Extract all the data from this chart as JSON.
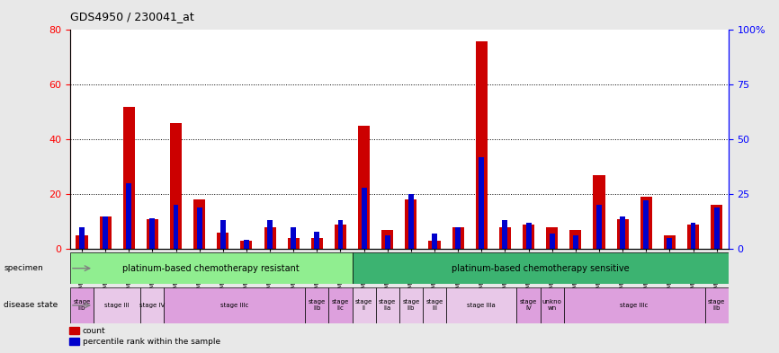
{
  "title": "GDS4950 / 230041_at",
  "samples": [
    "GSM1243893",
    "GSM1243879",
    "GSM1243904",
    "GSM1243878",
    "GSM1243882",
    "GSM1243880",
    "GSM1243891",
    "GSM1243892",
    "GSM1243894",
    "GSM1243897",
    "GSM1243896",
    "GSM1243885",
    "GSM1243895",
    "GSM1243898",
    "GSM1243886",
    "GSM1243881",
    "GSM1243887",
    "GSM1243889",
    "GSM1243890",
    "GSM1243900",
    "GSM1243877",
    "GSM1243884",
    "GSM1243883",
    "GSM1243888",
    "GSM1243901",
    "GSM1243902",
    "GSM1243903",
    "GSM1243899"
  ],
  "count_values": [
    5,
    12,
    52,
    11,
    46,
    18,
    6,
    3,
    8,
    4,
    4,
    9,
    45,
    7,
    18,
    3,
    8,
    76,
    8,
    9,
    8,
    7,
    27,
    11,
    19,
    5,
    9,
    16
  ],
  "percentile_values": [
    10,
    15,
    30,
    14,
    20,
    19,
    13,
    4,
    13,
    10,
    8,
    13,
    28,
    6,
    25,
    7,
    10,
    42,
    13,
    12,
    7,
    6,
    20,
    15,
    22,
    5,
    12,
    19
  ],
  "specimen_groups": [
    {
      "label": "platinum-based chemotherapy resistant",
      "start": 0,
      "end": 12,
      "color": "#90EE90"
    },
    {
      "label": "platinum-based chemotherapy sensitive",
      "start": 12,
      "end": 28,
      "color": "#3CB371"
    }
  ],
  "disease_state_groups": [
    {
      "label": "stage\nIIb",
      "start": 0,
      "end": 1,
      "color": "#DDA0DD"
    },
    {
      "label": "stage III",
      "start": 1,
      "end": 3,
      "color": "#E8C8E8"
    },
    {
      "label": "stage IV",
      "start": 3,
      "end": 4,
      "color": "#E8C8E8"
    },
    {
      "label": "stage IIIc",
      "start": 4,
      "end": 10,
      "color": "#DDA0DD"
    },
    {
      "label": "stage\nIIb",
      "start": 10,
      "end": 11,
      "color": "#DDA0DD"
    },
    {
      "label": "stage\nIIc",
      "start": 11,
      "end": 12,
      "color": "#DDA0DD"
    },
    {
      "label": "stage\nII",
      "start": 12,
      "end": 13,
      "color": "#E8C8E8"
    },
    {
      "label": "stage\nIIa",
      "start": 13,
      "end": 14,
      "color": "#E8C8E8"
    },
    {
      "label": "stage\nIIb",
      "start": 14,
      "end": 15,
      "color": "#E8C8E8"
    },
    {
      "label": "stage\nIII",
      "start": 15,
      "end": 16,
      "color": "#E8C8E8"
    },
    {
      "label": "stage IIIa",
      "start": 16,
      "end": 19,
      "color": "#E8C8E8"
    },
    {
      "label": "stage\nIV",
      "start": 19,
      "end": 20,
      "color": "#DDA0DD"
    },
    {
      "label": "unkno\nwn",
      "start": 20,
      "end": 21,
      "color": "#DDA0DD"
    },
    {
      "label": "stage IIIc",
      "start": 21,
      "end": 27,
      "color": "#DDA0DD"
    },
    {
      "label": "stage\nIIb",
      "start": 27,
      "end": 28,
      "color": "#DDA0DD"
    }
  ],
  "ylim_left": [
    0,
    80
  ],
  "ylim_right": [
    0,
    100
  ],
  "yticks_left": [
    0,
    20,
    40,
    60,
    80
  ],
  "yticks_right": [
    0,
    25,
    50,
    75,
    100
  ],
  "ytick_labels_right": [
    "0",
    "25",
    "50",
    "75",
    "100%"
  ],
  "bar_color_red": "#CC0000",
  "bar_color_blue": "#0000CC",
  "background_color": "#E8E8E8",
  "plot_bg": "#FFFFFF",
  "grid_lines": [
    20,
    40,
    60
  ]
}
